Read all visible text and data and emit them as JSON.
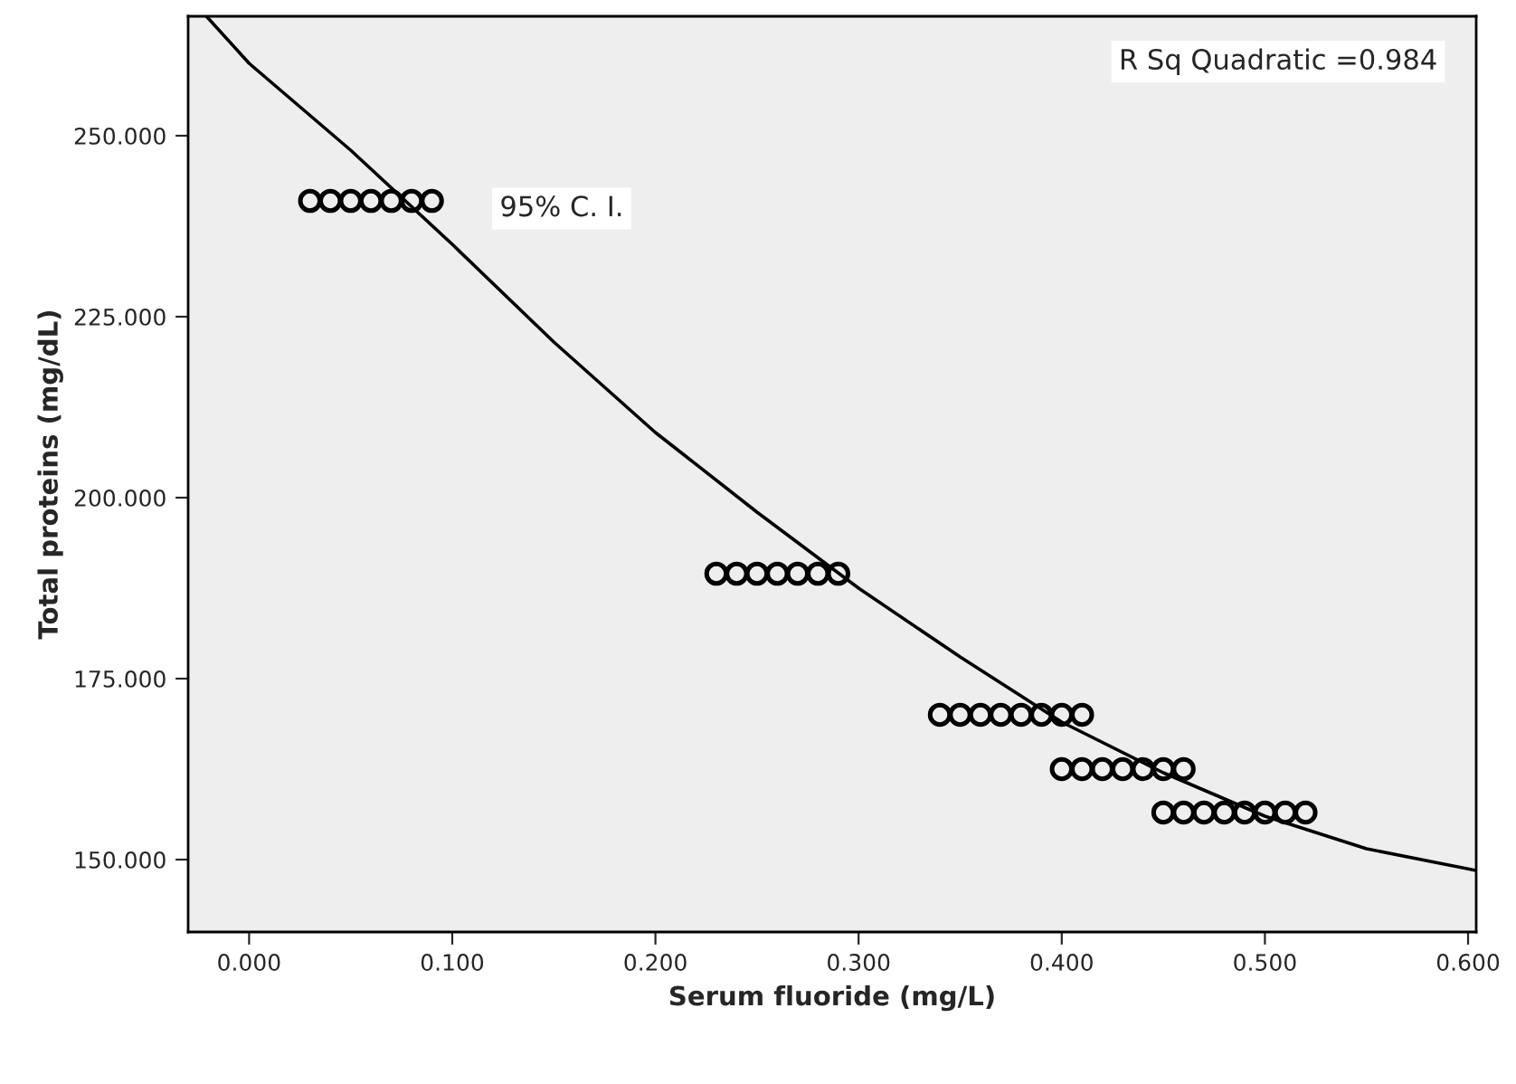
{
  "chart_data": {
    "type": "scatter",
    "xlabel": "Serum fluoride (mg/L)",
    "ylabel": "Total proteins (mg/dL)",
    "xlim": [
      -0.03,
      0.604
    ],
    "ylim": [
      140,
      266.5
    ],
    "xticks": [
      {
        "value": 0,
        "label": "0.000"
      },
      {
        "value": 0.1,
        "label": "0.100"
      },
      {
        "value": 0.2,
        "label": "0.200"
      },
      {
        "value": 0.3,
        "label": "0.300"
      },
      {
        "value": 0.4,
        "label": "0.400"
      },
      {
        "value": 0.5,
        "label": "0.500"
      },
      {
        "value": 0.6,
        "label": "0.600"
      }
    ],
    "yticks": [
      {
        "value": 150,
        "label": "150.000"
      },
      {
        "value": 175,
        "label": "175.000"
      },
      {
        "value": 200,
        "label": "200.000"
      },
      {
        "value": 225,
        "label": "225.000"
      },
      {
        "value": 250,
        "label": "250.000"
      }
    ],
    "grid": false,
    "legend": false,
    "marker": "circle",
    "annotations": [
      {
        "text": "R Sq Quadratic =0.984"
      },
      {
        "text": "95% C. I."
      }
    ],
    "series": [
      {
        "color": "#000000",
        "x": [
          0.03,
          0.04,
          0.05,
          0.06,
          0.07,
          0.08,
          0.09,
          0.23,
          0.24,
          0.25,
          0.26,
          0.27,
          0.28,
          0.29,
          0.34,
          0.35,
          0.36,
          0.37,
          0.38,
          0.39,
          0.4,
          0.41,
          0.4,
          0.41,
          0.42,
          0.43,
          0.44,
          0.45,
          0.46,
          0.45,
          0.46,
          0.47,
          0.48,
          0.49,
          0.5,
          0.51,
          0.52
        ],
        "values": [
          241,
          241,
          241,
          241,
          241,
          241,
          241,
          189.5,
          189.5,
          189.5,
          189.5,
          189.5,
          189.5,
          189.5,
          170,
          170,
          170,
          170,
          170,
          170,
          170,
          170,
          162.5,
          162.5,
          162.5,
          162.5,
          162.5,
          162.5,
          162.5,
          156.5,
          156.5,
          156.5,
          156.5,
          156.5,
          156.5,
          156.5,
          156.5
        ]
      },
      {
        "type": "line",
        "color": "#000000",
        "marker": "none",
        "x": [
          -0.021,
          0.0,
          0.05,
          0.1,
          0.15,
          0.2,
          0.25,
          0.3,
          0.35,
          0.4,
          0.45,
          0.5,
          0.55,
          0.604
        ],
        "values": [
          266.5,
          260,
          248,
          235,
          221.5,
          209,
          198,
          187.5,
          178,
          169,
          162,
          156,
          151.5,
          148.5
        ]
      }
    ]
  }
}
